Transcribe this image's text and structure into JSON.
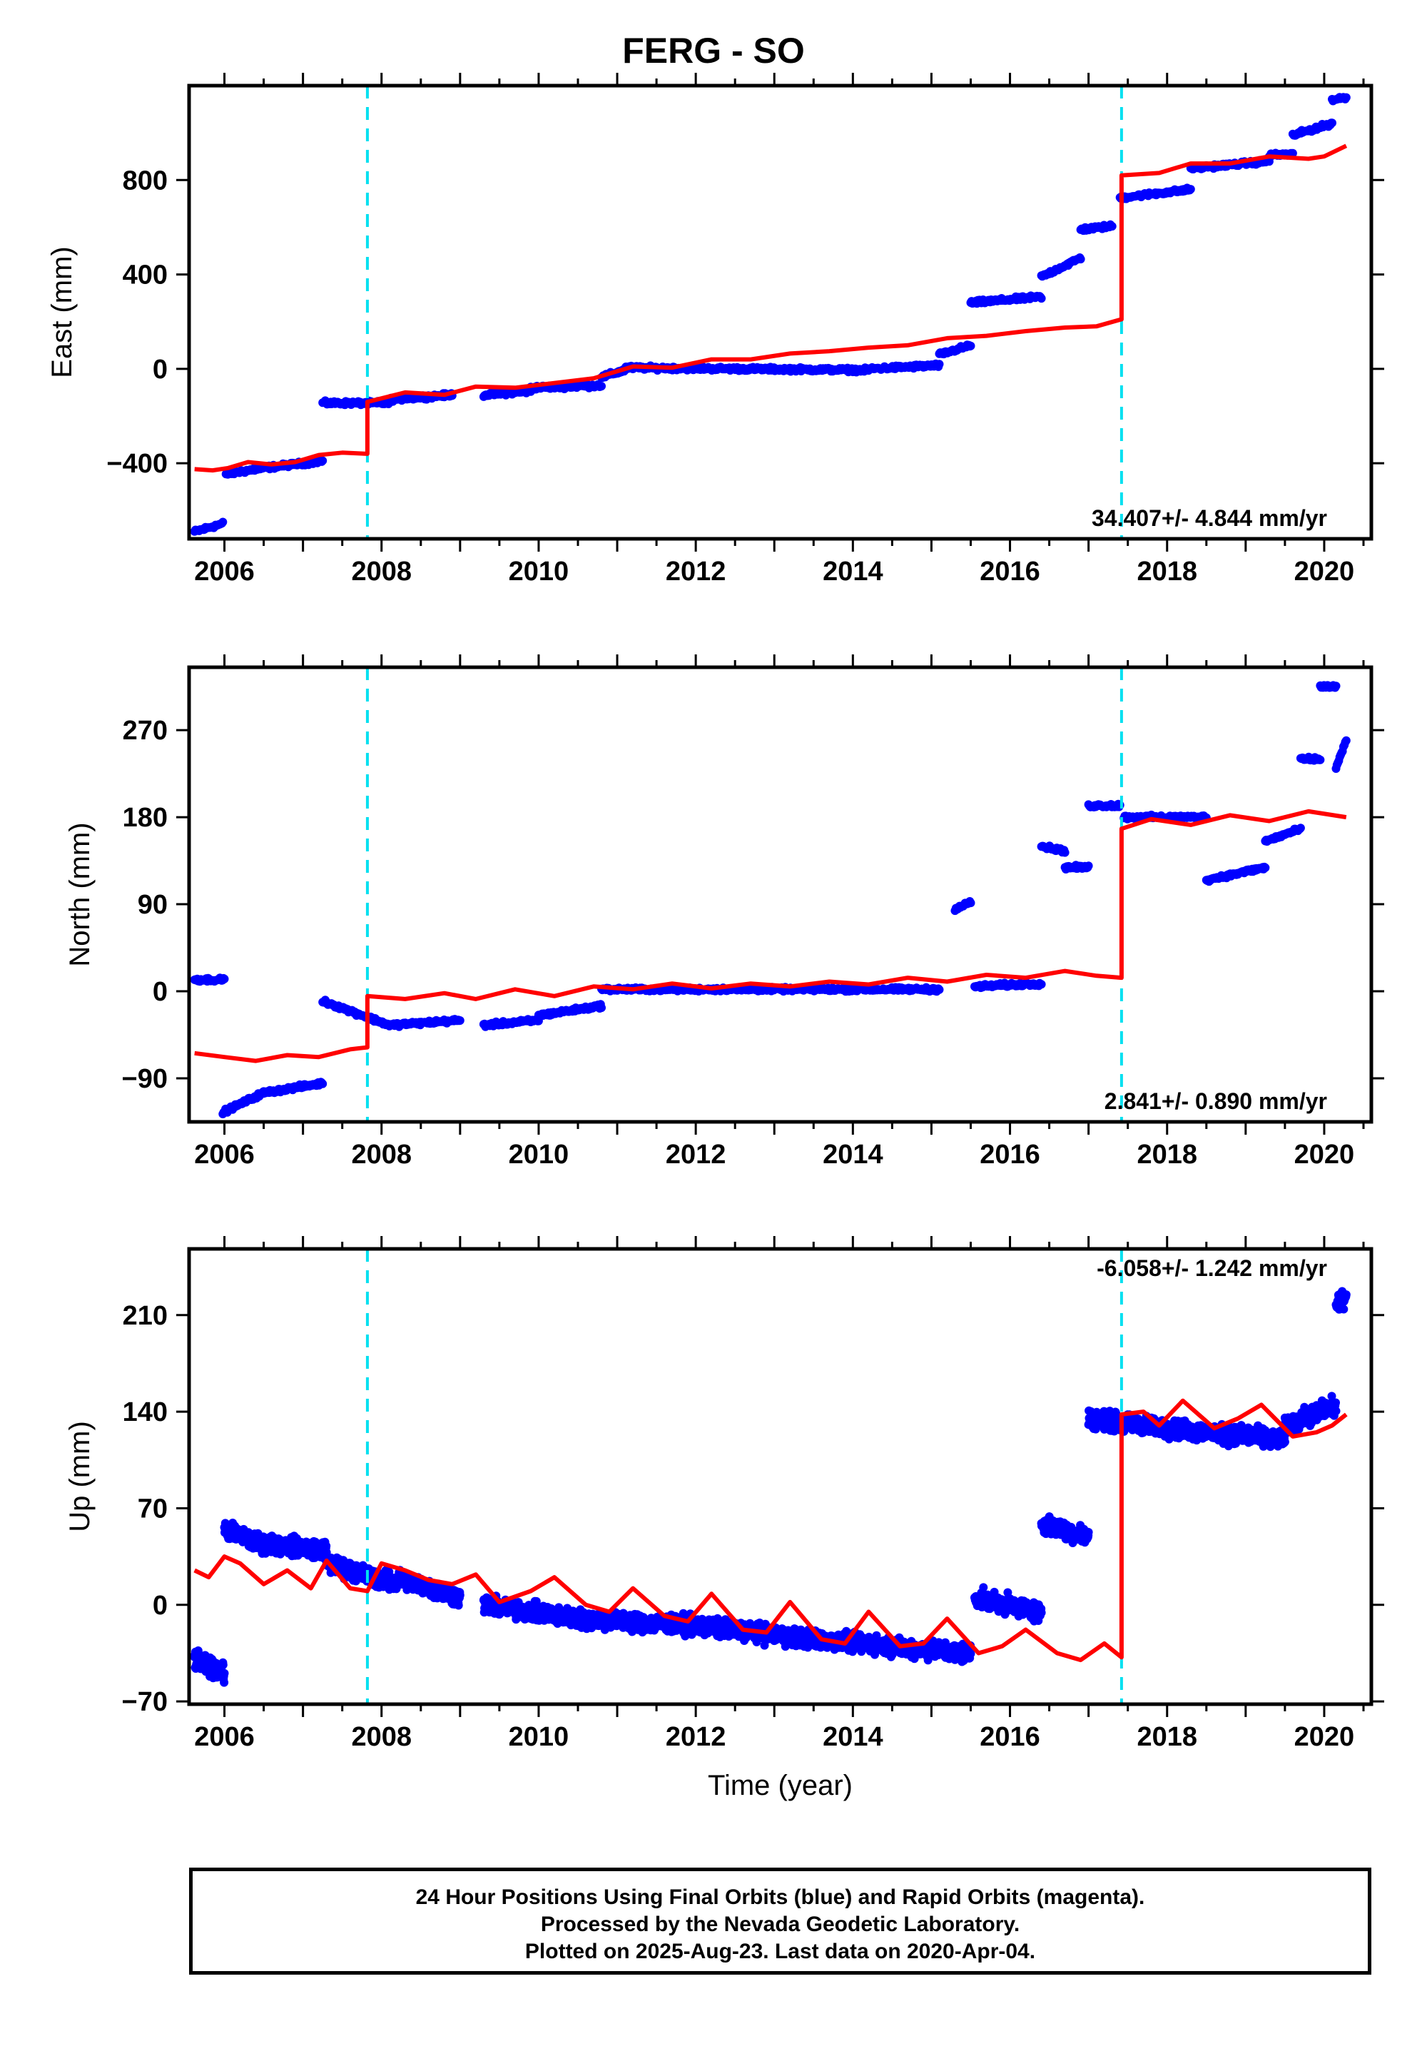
{
  "title": "FERG - SO",
  "xlabel": "Time (year)",
  "footer": {
    "line1": "24 Hour Positions Using Final Orbits (blue) and Rapid Orbits (magenta).",
    "line2": "Processed by the Nevada Geodetic Laboratory.",
    "line3": "Plotted on 2025-Aug-23. Last data on 2020-Apr-04."
  },
  "colors": {
    "observations": "#0000ff",
    "model": "#ff0000",
    "offsets": "#00e0f0"
  },
  "chart_data": [
    {
      "type": "scatter",
      "ylabel": "East (mm)",
      "xlim": [
        2005.55,
        2020.6
      ],
      "ylim": [
        -720,
        1200
      ],
      "xticks": [
        2006,
        2008,
        2010,
        2012,
        2014,
        2016,
        2018,
        2020
      ],
      "yticks": [
        -400,
        0,
        400,
        800
      ],
      "ytick_labels": [
        "−400",
        "0",
        "400",
        "800"
      ],
      "annotation": "34.407+/- 4.844 mm/yr",
      "offsets": [
        2007.82,
        2017.42
      ],
      "series": [
        {
          "role": "observations",
          "segments": [
            {
              "x0": 2005.62,
              "x1": 2005.98,
              "y0": -690,
              "y1": -655
            },
            {
              "x0": 2006.02,
              "x1": 2006.5,
              "y0": -445,
              "y1": -420
            },
            {
              "x0": 2006.5,
              "x1": 2007.25,
              "y0": -420,
              "y1": -390
            },
            {
              "x0": 2007.25,
              "x1": 2008.1,
              "y0": -145,
              "y1": -145
            },
            {
              "x0": 2008.1,
              "x1": 2008.9,
              "y0": -130,
              "y1": -110
            },
            {
              "x0": 2009.3,
              "x1": 2009.9,
              "y0": -110,
              "y1": -95
            },
            {
              "x0": 2009.9,
              "x1": 2010.8,
              "y0": -80,
              "y1": -70
            },
            {
              "x0": 2010.8,
              "x1": 2011.1,
              "y0": -35,
              "y1": -5
            },
            {
              "x0": 2011.1,
              "x1": 2014.2,
              "y0": 5,
              "y1": -5
            },
            {
              "x0": 2014.2,
              "x1": 2015.1,
              "y0": 0,
              "y1": 15
            },
            {
              "x0": 2015.1,
              "x1": 2015.5,
              "y0": 60,
              "y1": 100
            },
            {
              "x0": 2015.5,
              "x1": 2016.4,
              "y0": 280,
              "y1": 305
            },
            {
              "x0": 2016.4,
              "x1": 2016.9,
              "y0": 390,
              "y1": 470
            },
            {
              "x0": 2016.9,
              "x1": 2017.3,
              "y0": 590,
              "y1": 605
            },
            {
              "x0": 2017.4,
              "x1": 2018.3,
              "y0": 725,
              "y1": 760
            },
            {
              "x0": 2018.3,
              "x1": 2019.3,
              "y0": 850,
              "y1": 880
            },
            {
              "x0": 2019.3,
              "x1": 2019.6,
              "y0": 905,
              "y1": 910
            },
            {
              "x0": 2019.6,
              "x1": 2020.1,
              "y0": 990,
              "y1": 1040
            },
            {
              "x0": 2020.1,
              "x1": 2020.28,
              "y0": 1140,
              "y1": 1150
            }
          ]
        },
        {
          "role": "model",
          "points": [
            [
              2005.62,
              -425
            ],
            [
              2005.85,
              -430
            ],
            [
              2006.05,
              -420
            ],
            [
              2006.3,
              -395
            ],
            [
              2006.6,
              -405
            ],
            [
              2006.9,
              -395
            ],
            [
              2007.2,
              -365
            ],
            [
              2007.5,
              -355
            ],
            [
              2007.82,
              -360
            ],
            [
              2007.82,
              -140
            ],
            [
              2008.3,
              -100
            ],
            [
              2008.8,
              -110
            ],
            [
              2009.2,
              -75
            ],
            [
              2009.7,
              -80
            ],
            [
              2010.2,
              -60
            ],
            [
              2010.7,
              -40
            ],
            [
              2011.2,
              10
            ],
            [
              2011.7,
              5
            ],
            [
              2012.2,
              40
            ],
            [
              2012.7,
              40
            ],
            [
              2013.2,
              65
            ],
            [
              2013.7,
              75
            ],
            [
              2014.2,
              90
            ],
            [
              2014.7,
              100
            ],
            [
              2015.2,
              130
            ],
            [
              2015.7,
              140
            ],
            [
              2016.2,
              160
            ],
            [
              2016.7,
              175
            ],
            [
              2017.1,
              180
            ],
            [
              2017.42,
              210
            ],
            [
              2017.42,
              820
            ],
            [
              2017.9,
              830
            ],
            [
              2018.3,
              870
            ],
            [
              2018.8,
              870
            ],
            [
              2019.3,
              900
            ],
            [
              2019.8,
              890
            ],
            [
              2020.0,
              900
            ],
            [
              2020.28,
              945
            ]
          ]
        }
      ]
    },
    {
      "type": "scatter",
      "ylabel": "North (mm)",
      "xlim": [
        2005.55,
        2020.6
      ],
      "ylim": [
        -135,
        335
      ],
      "xticks": [
        2006,
        2008,
        2010,
        2012,
        2014,
        2016,
        2018,
        2020
      ],
      "yticks": [
        -90,
        0,
        90,
        180,
        270
      ],
      "ytick_labels": [
        "−90",
        "0",
        "90",
        "180",
        "270"
      ],
      "annotation": "2.841+/- 0.890 mm/yr",
      "offsets": [
        2007.82,
        2017.42
      ],
      "series": [
        {
          "role": "observations",
          "segments": [
            {
              "x0": 2005.62,
              "x1": 2006.0,
              "y0": 12,
              "y1": 12
            },
            {
              "x0": 2005.98,
              "x1": 2006.5,
              "y0": -125,
              "y1": -105
            },
            {
              "x0": 2006.5,
              "x1": 2007.25,
              "y0": -105,
              "y1": -95
            },
            {
              "x0": 2007.25,
              "x1": 2008.1,
              "y0": -10,
              "y1": -35
            },
            {
              "x0": 2008.1,
              "x1": 2009.0,
              "y0": -35,
              "y1": -30
            },
            {
              "x0": 2009.3,
              "x1": 2010.0,
              "y0": -35,
              "y1": -30
            },
            {
              "x0": 2010.0,
              "x1": 2010.8,
              "y0": -25,
              "y1": -15
            },
            {
              "x0": 2010.8,
              "x1": 2015.1,
              "y0": 2,
              "y1": 2
            },
            {
              "x0": 2015.3,
              "x1": 2015.5,
              "y0": 85,
              "y1": 92
            },
            {
              "x0": 2015.55,
              "x1": 2016.4,
              "y0": 5,
              "y1": 8
            },
            {
              "x0": 2016.4,
              "x1": 2016.7,
              "y0": 150,
              "y1": 145
            },
            {
              "x0": 2016.7,
              "x1": 2017.0,
              "y0": 128,
              "y1": 128
            },
            {
              "x0": 2017.0,
              "x1": 2017.4,
              "y0": 192,
              "y1": 192
            },
            {
              "x0": 2017.45,
              "x1": 2018.5,
              "y0": 180,
              "y1": 180
            },
            {
              "x0": 2018.5,
              "x1": 2019.25,
              "y0": 115,
              "y1": 128
            },
            {
              "x0": 2019.25,
              "x1": 2019.7,
              "y0": 155,
              "y1": 168
            },
            {
              "x0": 2019.7,
              "x1": 2019.95,
              "y0": 240,
              "y1": 240
            },
            {
              "x0": 2019.95,
              "x1": 2020.15,
              "y0": 315,
              "y1": 315
            },
            {
              "x0": 2020.15,
              "x1": 2020.28,
              "y0": 230,
              "y1": 260
            }
          ]
        },
        {
          "role": "model",
          "points": [
            [
              2005.62,
              -64
            ],
            [
              2006.0,
              -68
            ],
            [
              2006.4,
              -72
            ],
            [
              2006.8,
              -66
            ],
            [
              2007.2,
              -68
            ],
            [
              2007.6,
              -60
            ],
            [
              2007.82,
              -58
            ],
            [
              2007.82,
              -5
            ],
            [
              2008.3,
              -8
            ],
            [
              2008.8,
              -2
            ],
            [
              2009.2,
              -8
            ],
            [
              2009.7,
              2
            ],
            [
              2010.2,
              -5
            ],
            [
              2010.7,
              5
            ],
            [
              2011.2,
              2
            ],
            [
              2011.7,
              8
            ],
            [
              2012.2,
              3
            ],
            [
              2012.7,
              8
            ],
            [
              2013.2,
              5
            ],
            [
              2013.7,
              10
            ],
            [
              2014.2,
              7
            ],
            [
              2014.7,
              14
            ],
            [
              2015.2,
              10
            ],
            [
              2015.7,
              17
            ],
            [
              2016.2,
              14
            ],
            [
              2016.7,
              21
            ],
            [
              2017.1,
              16
            ],
            [
              2017.42,
              14
            ],
            [
              2017.42,
              168
            ],
            [
              2017.8,
              178
            ],
            [
              2018.3,
              172
            ],
            [
              2018.8,
              182
            ],
            [
              2019.3,
              176
            ],
            [
              2019.8,
              186
            ],
            [
              2020.28,
              180
            ]
          ]
        }
      ]
    },
    {
      "type": "scatter",
      "ylabel": "Up (mm)",
      "xlim": [
        2005.55,
        2020.6
      ],
      "ylim": [
        -72,
        258
      ],
      "xticks": [
        2006,
        2008,
        2010,
        2012,
        2014,
        2016,
        2018,
        2020
      ],
      "yticks": [
        -70,
        0,
        70,
        140,
        210
      ],
      "ytick_labels": [
        "−70",
        "0",
        "70",
        "140",
        "210"
      ],
      "annotation": "-6.058+/- 1.242 mm/yr",
      "offsets": [
        2007.82,
        2017.42
      ],
      "series": [
        {
          "role": "observations",
          "segments": [
            {
              "x0": 2005.62,
              "x1": 2006.0,
              "y0": -40,
              "y1": -50
            },
            {
              "x0": 2006.0,
              "x1": 2006.4,
              "y0": 55,
              "y1": 45
            },
            {
              "x0": 2006.4,
              "x1": 2007.3,
              "y0": 45,
              "y1": 40
            },
            {
              "x0": 2007.3,
              "x1": 2008.2,
              "y0": 30,
              "y1": 15
            },
            {
              "x0": 2008.2,
              "x1": 2009.0,
              "y0": 20,
              "y1": 5
            },
            {
              "x0": 2009.3,
              "x1": 2010.5,
              "y0": 0,
              "y1": -10
            },
            {
              "x0": 2010.5,
              "x1": 2012.0,
              "y0": -10,
              "y1": -15
            },
            {
              "x0": 2012.0,
              "x1": 2013.5,
              "y0": -15,
              "y1": -25
            },
            {
              "x0": 2013.5,
              "x1": 2015.5,
              "y0": -25,
              "y1": -35
            },
            {
              "x0": 2015.55,
              "x1": 2016.4,
              "y0": 5,
              "y1": -5
            },
            {
              "x0": 2016.4,
              "x1": 2017.0,
              "y0": 58,
              "y1": 50
            },
            {
              "x0": 2017.0,
              "x1": 2018.5,
              "y0": 135,
              "y1": 125
            },
            {
              "x0": 2018.5,
              "x1": 2019.5,
              "y0": 125,
              "y1": 120
            },
            {
              "x0": 2019.5,
              "x1": 2020.15,
              "y0": 130,
              "y1": 145
            },
            {
              "x0": 2020.15,
              "x1": 2020.28,
              "y0": 215,
              "y1": 225
            }
          ]
        },
        {
          "role": "model",
          "points": [
            [
              2005.62,
              25
            ],
            [
              2005.8,
              20
            ],
            [
              2006.0,
              35
            ],
            [
              2006.2,
              30
            ],
            [
              2006.5,
              15
            ],
            [
              2006.8,
              25
            ],
            [
              2007.1,
              12
            ],
            [
              2007.3,
              32
            ],
            [
              2007.6,
              12
            ],
            [
              2007.82,
              10
            ],
            [
              2008.0,
              30
            ],
            [
              2008.3,
              25
            ],
            [
              2008.6,
              18
            ],
            [
              2008.9,
              15
            ],
            [
              2009.2,
              22
            ],
            [
              2009.5,
              2
            ],
            [
              2009.9,
              10
            ],
            [
              2010.2,
              20
            ],
            [
              2010.6,
              0
            ],
            [
              2010.9,
              -5
            ],
            [
              2011.2,
              12
            ],
            [
              2011.6,
              -8
            ],
            [
              2011.9,
              -12
            ],
            [
              2012.2,
              8
            ],
            [
              2012.6,
              -18
            ],
            [
              2012.9,
              -20
            ],
            [
              2013.2,
              2
            ],
            [
              2013.6,
              -25
            ],
            [
              2013.9,
              -28
            ],
            [
              2014.2,
              -5
            ],
            [
              2014.6,
              -30
            ],
            [
              2014.9,
              -28
            ],
            [
              2015.2,
              -10
            ],
            [
              2015.6,
              -35
            ],
            [
              2015.9,
              -30
            ],
            [
              2016.2,
              -18
            ],
            [
              2016.6,
              -35
            ],
            [
              2016.9,
              -40
            ],
            [
              2017.2,
              -28
            ],
            [
              2017.42,
              -38
            ],
            [
              2017.42,
              138
            ],
            [
              2017.7,
              140
            ],
            [
              2017.9,
              130
            ],
            [
              2018.2,
              148
            ],
            [
              2018.6,
              128
            ],
            [
              2018.9,
              135
            ],
            [
              2019.2,
              145
            ],
            [
              2019.6,
              122
            ],
            [
              2019.9,
              125
            ],
            [
              2020.1,
              130
            ],
            [
              2020.28,
              138
            ]
          ]
        }
      ]
    }
  ]
}
